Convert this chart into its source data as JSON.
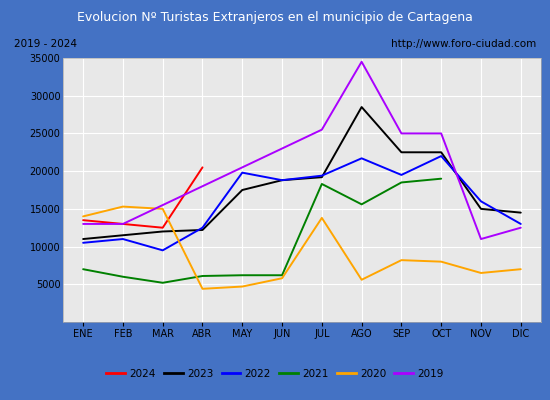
{
  "title": "Evolucion Nº Turistas Extranjeros en el municipio de Cartagena",
  "subtitle_left": "2019 - 2024",
  "subtitle_right": "http://www.foro-ciudad.com",
  "title_bg_color": "#4472c4",
  "title_text_color": "white",
  "months": [
    "ENE",
    "FEB",
    "MAR",
    "ABR",
    "MAY",
    "JUN",
    "JUL",
    "AGO",
    "SEP",
    "OCT",
    "NOV",
    "DIC"
  ],
  "ylim": [
    0,
    35000
  ],
  "yticks": [
    0,
    5000,
    10000,
    15000,
    20000,
    25000,
    30000,
    35000
  ],
  "series": {
    "2024": {
      "color": "red",
      "data": [
        13500,
        13000,
        12500,
        20500,
        null,
        null,
        null,
        null,
        null,
        null,
        null,
        null
      ]
    },
    "2023": {
      "color": "black",
      "data": [
        11000,
        11500,
        12000,
        12200,
        17500,
        18800,
        19200,
        28500,
        22500,
        22500,
        15000,
        14500
      ]
    },
    "2022": {
      "color": "blue",
      "data": [
        10500,
        11000,
        9500,
        12500,
        19800,
        18800,
        19400,
        21700,
        19500,
        22000,
        16000,
        13000
      ]
    },
    "2021": {
      "color": "green",
      "data": [
        7000,
        6000,
        5200,
        6100,
        6200,
        6200,
        18300,
        15600,
        18500,
        19000,
        null,
        null
      ]
    },
    "2020": {
      "color": "orange",
      "data": [
        14000,
        15300,
        15000,
        4400,
        4700,
        5800,
        13800,
        5600,
        8200,
        8000,
        6500,
        7000
      ]
    },
    "2019": {
      "color": "#aa00ff",
      "data": [
        13000,
        13000,
        null,
        null,
        null,
        null,
        25500,
        34500,
        25000,
        25000,
        11000,
        12500
      ]
    }
  },
  "legend_order": [
    "2024",
    "2023",
    "2022",
    "2021",
    "2020",
    "2019"
  ],
  "plot_bg_color": "#e8e8e8",
  "grid_color": "white",
  "outer_border_color": "#4472c4",
  "inner_bg_color": "#d4d4d4"
}
